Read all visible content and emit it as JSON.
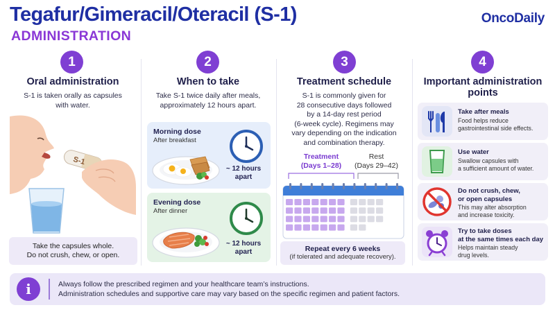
{
  "header": {
    "title": "Tegafur/Gimeracil/Oteracil (S-1)",
    "subtitle": "ADMINISTRATION",
    "brand": "OncoDaily"
  },
  "col1": {
    "number": "1",
    "title": "Oral administration",
    "desc_lines": [
      "S-1 is taken orally as capsules",
      "with water."
    ],
    "capsule_label": "S-1",
    "note_lines": [
      "Take the capsules whole.",
      "Do not crush, chew, or open."
    ]
  },
  "col2": {
    "number": "2",
    "title": "When to take",
    "desc_lines": [
      "Take S-1 twice daily after meals,",
      "approximately 12 hours apart."
    ],
    "morning": {
      "title": "Morning dose",
      "sub": "After breakfast",
      "hours_lines": [
        "~ 12 hours",
        "apart"
      ],
      "color": "#e6eefb"
    },
    "evening": {
      "title": "Evening dose",
      "sub": "After dinner",
      "hours_lines": [
        "~ 12 hours",
        "apart"
      ],
      "color": "#e4f3e6"
    }
  },
  "col3": {
    "number": "3",
    "title": "Treatment schedule",
    "desc_lines": [
      "S-1 is commonly given for",
      "28 consecutive days followed",
      "by a 14-day rest period",
      "(6-week cycle). Regimens may",
      "vary depending on the indication",
      "and combination therapy."
    ],
    "treatment_label_lines": [
      "Treatment",
      "(Days 1–28)"
    ],
    "rest_label_lines": [
      "Rest",
      "(Days 29–42)"
    ],
    "treatment_days": 28,
    "rest_days": 14,
    "note_title": "Repeat every 6 weeks",
    "note_sub": "(if tolerated and adequate recovery)."
  },
  "col4": {
    "number": "4",
    "title_lines": [
      "Important administration",
      "points"
    ],
    "points": [
      {
        "icon": "utensils-icon",
        "head_lines": [
          "Take after meals"
        ],
        "desc_lines": [
          "Food helps reduce",
          "gastrointestinal side effects."
        ]
      },
      {
        "icon": "water-glass-icon",
        "head_lines": [
          "Use water"
        ],
        "desc_lines": [
          "Swallow capsules with",
          "a sufficient amount of water."
        ]
      },
      {
        "icon": "no-crush-icon",
        "head_lines": [
          "Do not crush, chew,",
          "or open capsules"
        ],
        "desc_lines": [
          "This may alter absorption",
          "and increase toxicity."
        ]
      },
      {
        "icon": "alarm-clock-icon",
        "head_lines": [
          "Try to take doses",
          "at the same times each day"
        ],
        "desc_lines": [
          "Helps maintain steady",
          "drug levels."
        ]
      }
    ]
  },
  "footer": {
    "icon": "info-icon",
    "info_glyph": "i",
    "line1": "Always follow the prescribed regimen and your healthcare team’s instructions.",
    "line2": "Administration schedules and supportive care may vary based on the specific regimen and patient factors."
  },
  "colors": {
    "accent": "#7f3fd3",
    "title": "#1f2fa3",
    "treatment_day": "#c7a8ee",
    "rest_day": "#dcdce4"
  }
}
